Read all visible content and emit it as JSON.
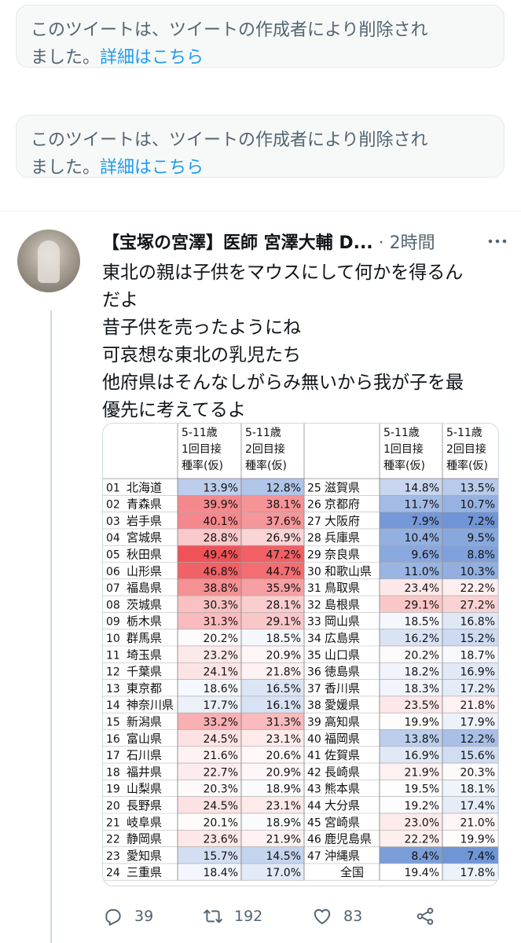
{
  "deleted_notices": [
    {
      "line1": "このツイートは、ツイートの作成者により削除され",
      "line2_prefix": "ました。",
      "link": "詳細はこちら"
    },
    {
      "line1": "このツイートは、ツイートの作成者により削除され",
      "line2_prefix": "ました。",
      "link": "詳細はこちら"
    }
  ],
  "tweet": {
    "author": "【宝塚の宮澤】医師 宮澤大輔 D...",
    "separator": "·",
    "time": "2時間",
    "lines": [
      "東北の親は子供をマウスにして何かを得るん",
      "だよ",
      "昔子供を売ったようにね",
      "可哀想な東北の乳児たち",
      "他府県はそんなしがらみ無いから我が子を最",
      "優先に考えてるよ"
    ],
    "replies": "39",
    "retweets": "192",
    "likes": "83"
  },
  "icons": [
    "more-icon",
    "reply-icon",
    "retweet-icon",
    "like-icon",
    "share-icon"
  ],
  "colors": {
    "red_max": "#ef5358",
    "blue_max": "#6f95d6",
    "link": "#1d9bf0"
  },
  "table": {
    "header_lines": [
      [
        "5-11歳",
        "1回目接",
        "種率(仮)"
      ],
      [
        "5-11歳",
        "2回目接",
        "種率(仮)"
      ]
    ],
    "left": [
      [
        "01",
        "北海道",
        "13.9%",
        "12.8%"
      ],
      [
        "02",
        "青森県",
        "39.9%",
        "38.1%"
      ],
      [
        "03",
        "岩手県",
        "40.1%",
        "37.6%"
      ],
      [
        "04",
        "宮城県",
        "28.8%",
        "26.9%"
      ],
      [
        "05",
        "秋田県",
        "49.4%",
        "47.2%"
      ],
      [
        "06",
        "山形県",
        "46.8%",
        "44.7%"
      ],
      [
        "07",
        "福島県",
        "38.8%",
        "35.9%"
      ],
      [
        "08",
        "茨城県",
        "30.3%",
        "28.1%"
      ],
      [
        "09",
        "栃木県",
        "31.3%",
        "29.1%"
      ],
      [
        "10",
        "群馬県",
        "20.2%",
        "18.5%"
      ],
      [
        "11",
        "埼玉県",
        "23.2%",
        "20.9%"
      ],
      [
        "12",
        "千葉県",
        "24.1%",
        "21.8%"
      ],
      [
        "13",
        "東京都",
        "18.6%",
        "16.5%"
      ],
      [
        "14",
        "神奈川県",
        "17.7%",
        "16.1%"
      ],
      [
        "15",
        "新潟県",
        "33.2%",
        "31.3%"
      ],
      [
        "16",
        "富山県",
        "24.5%",
        "23.1%"
      ],
      [
        "17",
        "石川県",
        "21.6%",
        "20.6%"
      ],
      [
        "18",
        "福井県",
        "22.7%",
        "20.9%"
      ],
      [
        "19",
        "山梨県",
        "20.3%",
        "18.9%"
      ],
      [
        "20",
        "長野県",
        "24.5%",
        "23.1%"
      ],
      [
        "21",
        "岐阜県",
        "20.1%",
        "18.9%"
      ],
      [
        "22",
        "静岡県",
        "23.6%",
        "21.9%"
      ],
      [
        "23",
        "愛知県",
        "15.7%",
        "14.5%"
      ],
      [
        "24",
        "三重県",
        "18.4%",
        "17.0%"
      ]
    ],
    "right": [
      [
        "25",
        "滋賀県",
        "14.8%",
        "13.5%"
      ],
      [
        "26",
        "京都府",
        "11.7%",
        "10.7%"
      ],
      [
        "27",
        "大阪府",
        "7.9%",
        "7.2%"
      ],
      [
        "28",
        "兵庫県",
        "10.4%",
        "9.5%"
      ],
      [
        "29",
        "奈良県",
        "9.6%",
        "8.8%"
      ],
      [
        "30",
        "和歌山県",
        "11.0%",
        "10.3%"
      ],
      [
        "31",
        "鳥取県",
        "23.4%",
        "22.2%"
      ],
      [
        "32",
        "島根県",
        "29.1%",
        "27.2%"
      ],
      [
        "33",
        "岡山県",
        "18.5%",
        "16.8%"
      ],
      [
        "34",
        "広島県",
        "16.2%",
        "15.2%"
      ],
      [
        "35",
        "山口県",
        "20.2%",
        "18.7%"
      ],
      [
        "36",
        "徳島県",
        "18.2%",
        "16.9%"
      ],
      [
        "37",
        "香川県",
        "18.3%",
        "17.2%"
      ],
      [
        "38",
        "愛媛県",
        "23.5%",
        "21.8%"
      ],
      [
        "39",
        "高知県",
        "19.9%",
        "17.9%"
      ],
      [
        "40",
        "福岡県",
        "13.8%",
        "12.2%"
      ],
      [
        "41",
        "佐賀県",
        "16.9%",
        "15.6%"
      ],
      [
        "42",
        "長崎県",
        "21.9%",
        "20.3%"
      ],
      [
        "43",
        "熊本県",
        "19.5%",
        "18.1%"
      ],
      [
        "44",
        "大分県",
        "19.2%",
        "17.4%"
      ],
      [
        "45",
        "宮崎県",
        "23.0%",
        "21.0%"
      ],
      [
        "46",
        "鹿児島県",
        "22.2%",
        "19.9%"
      ],
      [
        "47",
        "沖縄県",
        "8.4%",
        "7.4%"
      ],
      [
        "",
        "全国",
        "19.4%",
        "17.8%"
      ]
    ]
  }
}
